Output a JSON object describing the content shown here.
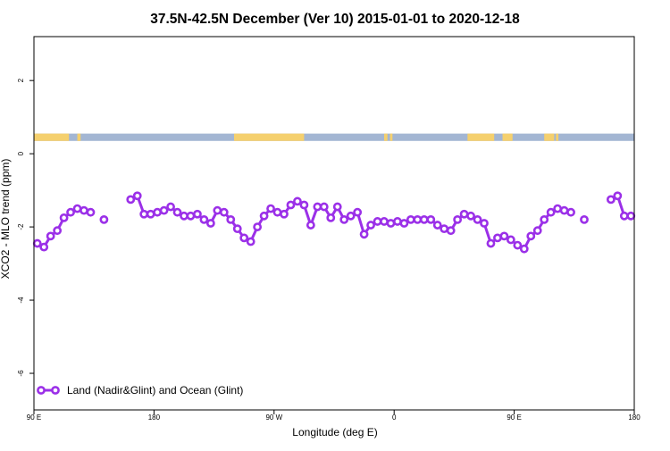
{
  "chart_data": {
    "type": "line",
    "title": "37.5N-42.5N December (Ver 10)   2015-01-01 to 2020-12-18",
    "xlabel": "Longitude (deg E)",
    "ylabel": "XCO2 - MLO trend (ppm)",
    "xlim": [
      90,
      450
    ],
    "ylim": [
      -7,
      3.2
    ],
    "x_ticks": [
      {
        "value": 90,
        "label": "90 E"
      },
      {
        "value": 162,
        "label": "180"
      },
      {
        "value": 234,
        "label": "90 W"
      },
      {
        "value": 306,
        "label": "0"
      },
      {
        "value": 378,
        "label": "90 E"
      },
      {
        "value": 450,
        "label": "180"
      }
    ],
    "y_ticks": [
      {
        "value": 2,
        "label": "2"
      },
      {
        "value": 0,
        "label": "0"
      },
      {
        "value": -2,
        "label": "-2"
      },
      {
        "value": -4,
        "label": "-4"
      },
      {
        "value": -6,
        "label": "-6"
      }
    ],
    "grid": false,
    "legend_position": "bottom-left",
    "surface_strip": {
      "y_range": [
        0.35,
        0.55
      ],
      "ocean_color": "#a3b6d3",
      "land_color": "#f5d06e",
      "land_ranges": [
        [
          90,
          111
        ],
        [
          116,
          118
        ],
        [
          210,
          252
        ],
        [
          300,
          302
        ],
        [
          303.5,
          305
        ],
        [
          350,
          366
        ],
        [
          371,
          377
        ],
        [
          396,
          402
        ],
        [
          403,
          404.5
        ]
      ]
    },
    "series": [
      {
        "name": "Land (Nadir&Glint) and Ocean (Glint)",
        "color": "#9b30e8",
        "segments": [
          {
            "x": [
              92,
              96,
              100,
              104,
              108,
              112,
              116,
              120,
              124
            ],
            "y": [
              -2.45,
              -2.55,
              -2.25,
              -2.1,
              -1.75,
              -1.6,
              -1.5,
              -1.55,
              -1.6
            ]
          },
          {
            "x": [
              132
            ],
            "y": [
              -1.8
            ]
          },
          {
            "x": [
              148,
              152,
              156,
              160,
              164,
              168,
              172,
              176,
              180,
              184,
              188,
              192,
              196,
              200,
              204,
              208,
              212,
              216,
              220,
              224,
              228,
              232,
              236,
              240,
              244,
              248,
              252,
              256,
              260,
              264,
              268,
              272,
              276,
              280,
              284,
              288,
              292,
              296,
              300,
              304,
              308,
              312,
              316,
              320,
              324,
              328,
              332,
              336,
              340,
              344,
              348,
              352,
              356,
              360,
              364,
              368,
              372,
              376,
              380,
              384,
              388,
              392,
              396,
              400,
              404,
              408,
              412
            ],
            "y": [
              -1.25,
              -1.15,
              -1.65,
              -1.65,
              -1.6,
              -1.55,
              -1.45,
              -1.6,
              -1.7,
              -1.7,
              -1.65,
              -1.8,
              -1.9,
              -1.55,
              -1.6,
              -1.8,
              -2.05,
              -2.3,
              -2.4,
              -2.0,
              -1.7,
              -1.5,
              -1.6,
              -1.65,
              -1.4,
              -1.3,
              -1.4,
              -1.95,
              -1.45,
              -1.45,
              -1.75,
              -1.45,
              -1.8,
              -1.7,
              -1.6,
              -2.2,
              -1.95,
              -1.85,
              -1.85,
              -1.9,
              -1.85,
              -1.9,
              -1.8,
              -1.8,
              -1.8,
              -1.8,
              -1.95,
              -2.05,
              -2.1,
              -1.8,
              -1.65,
              -1.7,
              -1.8,
              -1.9,
              -2.45,
              -2.3,
              -2.25,
              -2.35,
              -2.5,
              -2.6,
              -2.25,
              -2.1,
              -1.8,
              -1.6,
              -1.5,
              -1.55,
              -1.6
            ]
          },
          {
            "x": [
              420
            ],
            "y": [
              -1.8
            ]
          },
          {
            "x": [
              436,
              440,
              444,
              448
            ],
            "y": [
              -1.25,
              -1.15,
              -1.7,
              -1.7
            ]
          }
        ]
      }
    ]
  }
}
